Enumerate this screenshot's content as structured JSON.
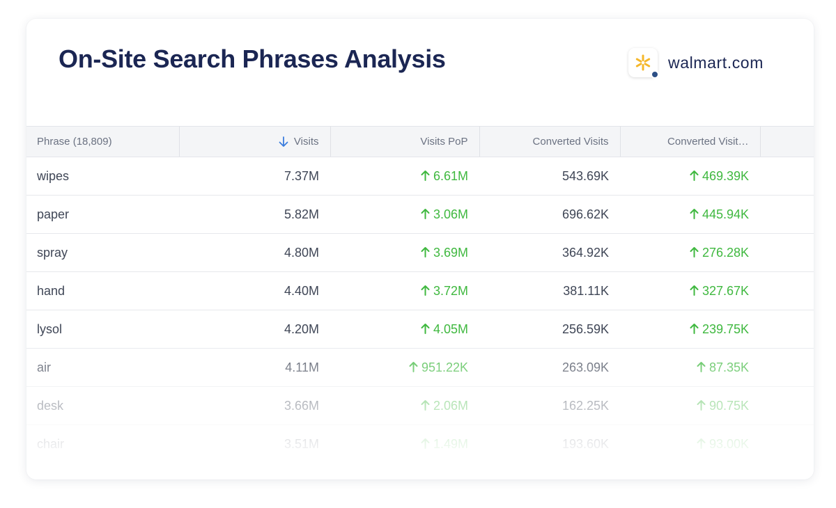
{
  "header": {
    "title": "On-Site Search Phrases Analysis",
    "site": "walmart.com",
    "logo_icon": "walmart-spark-icon",
    "logo_color": "#f5b72a",
    "status_dot_color": "#2c4f85"
  },
  "table": {
    "columns": [
      {
        "label": "Phrase (18,809)"
      },
      {
        "label": "Visits",
        "sorted": "descending",
        "sort_icon": "arrow-down-icon",
        "sort_icon_color": "#3b7ddd"
      },
      {
        "label": "Visits PoP"
      },
      {
        "label": "Converted Visits"
      },
      {
        "label": "Converted Visit…"
      }
    ],
    "change_icon": "arrow-up-icon",
    "positive_color": "#3fb83f",
    "rows": [
      {
        "phrase": "wipes",
        "visits": "7.37M",
        "visits_pop": "6.61M",
        "converted_visits": "543.69K",
        "converted_change": "469.39K"
      },
      {
        "phrase": "paper",
        "visits": "5.82M",
        "visits_pop": "3.06M",
        "converted_visits": "696.62K",
        "converted_change": "445.94K"
      },
      {
        "phrase": "spray",
        "visits": "4.80M",
        "visits_pop": "3.69M",
        "converted_visits": "364.92K",
        "converted_change": "276.28K"
      },
      {
        "phrase": "hand",
        "visits": "4.40M",
        "visits_pop": "3.72M",
        "converted_visits": "381.11K",
        "converted_change": "327.67K"
      },
      {
        "phrase": "lysol",
        "visits": "4.20M",
        "visits_pop": "4.05M",
        "converted_visits": "256.59K",
        "converted_change": "239.75K"
      },
      {
        "phrase": "air",
        "visits": "4.11M",
        "visits_pop": "951.22K",
        "converted_visits": "263.09K",
        "converted_change": "87.35K"
      },
      {
        "phrase": "desk",
        "visits": "3.66M",
        "visits_pop": "2.06M",
        "converted_visits": "162.25K",
        "converted_change": "90.75K"
      },
      {
        "phrase": "chair",
        "visits": "3.51M",
        "visits_pop": "1.49M",
        "converted_visits": "193.60K",
        "converted_change": "93.00K"
      }
    ]
  }
}
